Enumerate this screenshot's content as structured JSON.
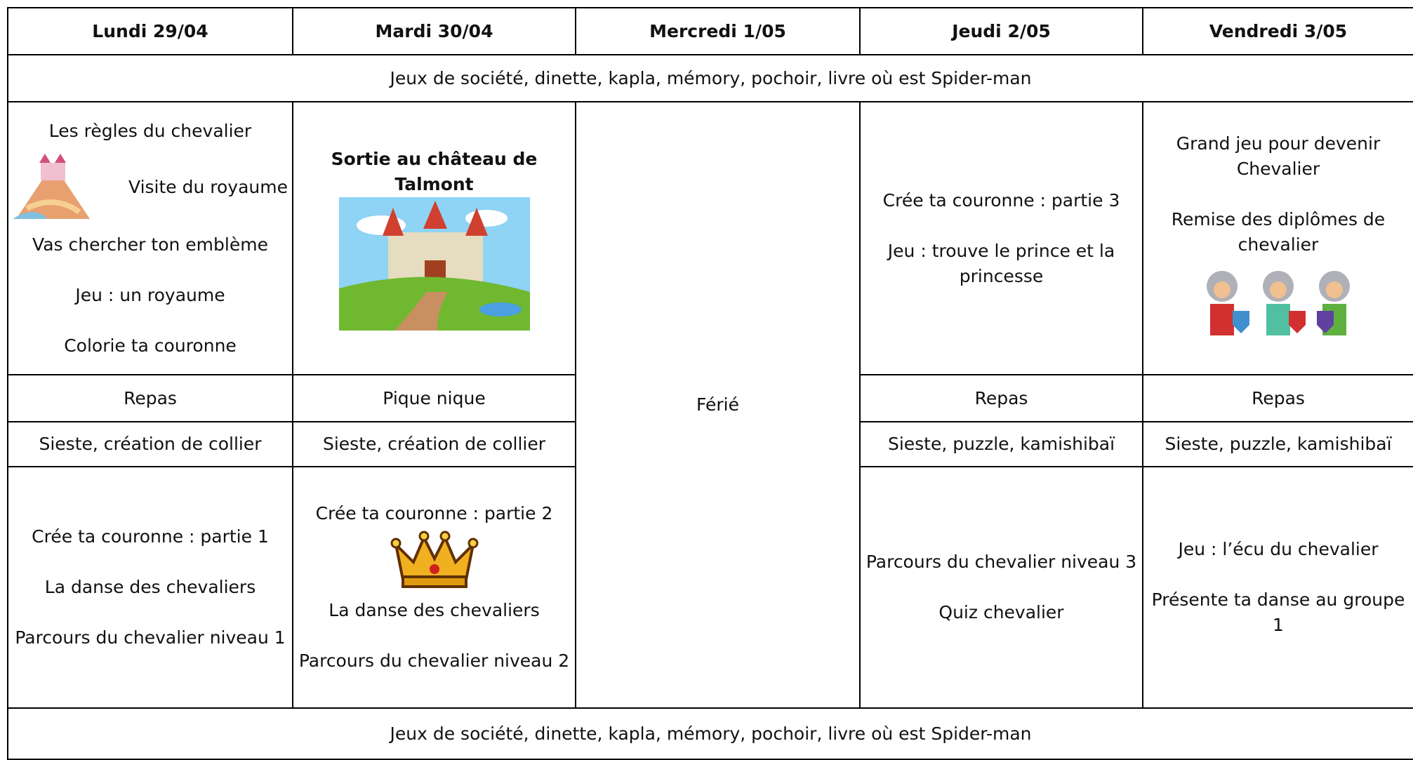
{
  "header": {
    "days": [
      "Lundi 29/04",
      "Mardi 30/04",
      "Mercredi 1/05",
      "Jeudi 2/05",
      "Vendredi 3/05"
    ]
  },
  "activities_top": "Jeux de société, dinette, kapla, mémory, pochoir, livre où est Spider-man",
  "morning": {
    "monday": [
      "Les règles du chevalier",
      "Visite du royaume",
      "Vas chercher ton emblème",
      "Jeu : un royaume",
      "Colorie ta couronne"
    ],
    "tuesday": "Sortie au château de Talmont",
    "thursday": [
      "Crée ta couronne : partie 3",
      "Jeu : trouve le prince et la princesse"
    ],
    "friday": [
      "Grand jeu pour devenir Chevalier",
      "Remise des diplômes de chevalier"
    ]
  },
  "holiday": "Férié",
  "lunch": [
    "Repas",
    "Pique nique",
    "Repas",
    "Repas"
  ],
  "nap": [
    "Sieste, création de collier",
    "Sieste, création de collier",
    "Sieste, puzzle, kamishibaï",
    "Sieste, puzzle, kamishibaï"
  ],
  "afternoon": {
    "monday": [
      "Crée ta couronne : partie 1",
      "La danse des chevaliers",
      "Parcours du chevalier niveau 1"
    ],
    "tuesday": [
      "Crée ta couronne : partie 2",
      "La danse des chevaliers",
      "Parcours du chevalier niveau 2"
    ],
    "thursday": [
      "Parcours du chevalier niveau 3",
      "Quiz chevalier"
    ],
    "friday": [
      "Jeu : l’écu du chevalier",
      "Présente ta danse au groupe 1"
    ]
  },
  "activities_bottom": "Jeux de société, dinette, kapla, mémory, pochoir, livre où est Spider-man"
}
